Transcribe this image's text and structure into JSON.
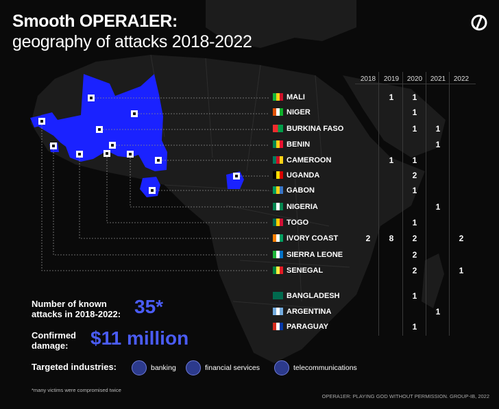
{
  "title_line1": "Smooth OPERA1ER:",
  "title_line2": "geography of attacks 2018-2022",
  "logo_icon": "group-ib-logo-icon",
  "years": [
    "2018",
    "2019",
    "2020",
    "2021",
    "2022"
  ],
  "countries": [
    {
      "name": "MALI",
      "flag": [
        "#14b53a",
        "#fcd116",
        "#ce1126"
      ],
      "counts": [
        "",
        "1",
        "1",
        "",
        ""
      ]
    },
    {
      "name": "NIGER",
      "flag": [
        "#e05206",
        "#ffffff",
        "#0db02b"
      ],
      "counts": [
        "",
        "",
        "1",
        "",
        ""
      ]
    },
    {
      "name": "BURKINA FASO",
      "flag": [
        "#ef2b2d",
        "#009e49"
      ],
      "counts": [
        "",
        "",
        "1",
        "1",
        ""
      ]
    },
    {
      "name": "BENIN",
      "flag": [
        "#008751",
        "#fcd116",
        "#e8112d"
      ],
      "counts": [
        "",
        "",
        "",
        "1",
        ""
      ]
    },
    {
      "name": "CAMEROON",
      "flag": [
        "#007a5e",
        "#ce1126",
        "#fcd116"
      ],
      "counts": [
        "",
        "1",
        "1",
        "",
        ""
      ]
    },
    {
      "name": "UGANDA",
      "flag": [
        "#000000",
        "#fcdc04",
        "#d90000"
      ],
      "counts": [
        "",
        "",
        "2",
        "",
        ""
      ]
    },
    {
      "name": "GABON",
      "flag": [
        "#009e60",
        "#fcd116",
        "#3a75c4"
      ],
      "counts": [
        "",
        "",
        "1",
        "",
        ""
      ]
    },
    {
      "name": "NIGERIA",
      "flag": [
        "#008751",
        "#ffffff",
        "#008751"
      ],
      "counts": [
        "",
        "",
        "",
        "1",
        ""
      ]
    },
    {
      "name": "TOGO",
      "flag": [
        "#006a4e",
        "#ffce00",
        "#d21034"
      ],
      "counts": [
        "",
        "",
        "1",
        "",
        ""
      ]
    },
    {
      "name": "IVORY COAST",
      "flag": [
        "#f77f00",
        "#ffffff",
        "#009e60"
      ],
      "counts": [
        "2",
        "8",
        "2",
        "",
        "2"
      ]
    },
    {
      "name": "SIERRA LEONE",
      "flag": [
        "#1eb53a",
        "#ffffff",
        "#0072c6"
      ],
      "counts": [
        "",
        "",
        "2",
        "",
        ""
      ]
    },
    {
      "name": "SENEGAL",
      "flag": [
        "#00853f",
        "#fdef42",
        "#e31b23"
      ],
      "counts": [
        "",
        "",
        "2",
        "",
        "1"
      ]
    },
    {
      "name": "BANGLADESH",
      "flag": [
        "#006a4e",
        "#006a4e"
      ],
      "counts": [
        "",
        "",
        "1",
        "",
        ""
      ]
    },
    {
      "name": "ARGENTINA",
      "flag": [
        "#74acdf",
        "#ffffff",
        "#74acdf"
      ],
      "counts": [
        "",
        "",
        "",
        "1",
        ""
      ]
    },
    {
      "name": "PARAGUAY",
      "flag": [
        "#d52b1e",
        "#ffffff",
        "#0038a8"
      ],
      "counts": [
        "",
        "",
        "1",
        "",
        ""
      ]
    }
  ],
  "stats": {
    "attacks_label_1": "Number of known",
    "attacks_label_2": "attacks in 2018-2022:",
    "attacks_value": "35*",
    "damage_label_1": "Confirmed",
    "damage_label_2": "damage:",
    "damage_value": "$11 million"
  },
  "industries": {
    "title": "Targeted industries:",
    "items": [
      {
        "label": "banking",
        "icon": "money-bag-icon"
      },
      {
        "label": "financial services",
        "icon": "coin-stack-icon"
      },
      {
        "label": "telecommunications",
        "icon": "phone-icon"
      }
    ]
  },
  "footnote": "*many victims were compromised twice",
  "source": "OPERA1ER: PLAYING GOD WITHOUT PERMISSION. GROUP-IB, 2022",
  "colors": {
    "accent": "#4a5cf5",
    "highlight": "#1a22ff",
    "background": "#0a0a0a"
  }
}
